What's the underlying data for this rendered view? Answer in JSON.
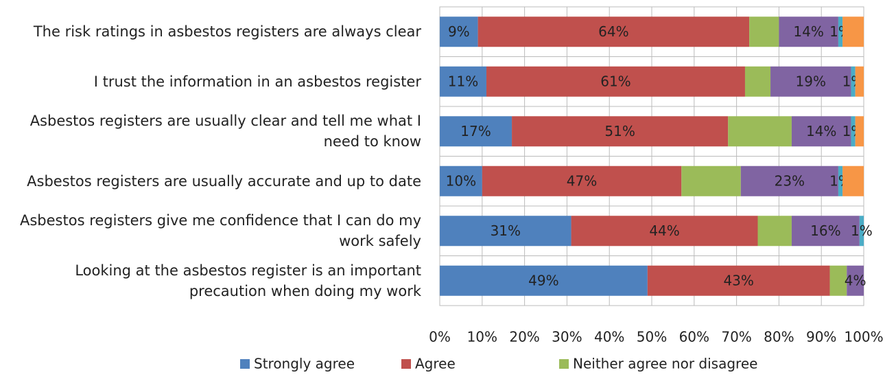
{
  "chart_data": {
    "type": "stacked-bar-horizontal",
    "categories": [
      "The risk ratings in asbestos registers are always clear",
      "I trust the information in an asbestos register",
      "Asbestos registers are usually clear and tell me what I need to know",
      "Asbestos registers are usually accurate and up to date",
      "Asbestos registers give me confidence that I can do my work safely",
      "Looking at the asbestos register is an important precaution when doing my work"
    ],
    "series": [
      {
        "name": "Strongly agree",
        "color": "#4f81bd",
        "values": [
          9,
          11,
          17,
          10,
          31,
          49
        ],
        "value_labels": [
          "9%",
          "11%",
          "17%",
          "10%",
          "31%",
          "49%"
        ]
      },
      {
        "name": "Agree",
        "color": "#c0504d",
        "values": [
          64,
          61,
          51,
          47,
          44,
          43
        ],
        "value_labels": [
          "64%",
          "61%",
          "51%",
          "47%",
          "44%",
          "43%"
        ]
      },
      {
        "name": "Neither agree nor disagree",
        "color": "#9bbb59",
        "values": [
          7,
          6,
          15,
          14,
          8,
          4
        ]
      },
      {
        "color": "#8064a2",
        "values": [
          14,
          19,
          14,
          23,
          16,
          4
        ],
        "value_labels": [
          "14%",
          "19%",
          "14%",
          "23%",
          "16%",
          "4%"
        ]
      },
      {
        "color": "#4bacc6",
        "values": [
          1,
          1,
          1,
          1,
          1,
          0
        ],
        "value_labels": [
          "1%",
          "1%",
          "1%",
          "1%",
          "1%",
          null
        ]
      },
      {
        "color": "#f79646",
        "values": [
          5,
          2,
          2,
          5,
          0,
          0
        ]
      }
    ],
    "xlim": [
      0,
      100
    ],
    "xticks": [
      {
        "value": 0,
        "label": "0%"
      },
      {
        "value": 10,
        "label": "10%"
      },
      {
        "value": 20,
        "label": "20%"
      },
      {
        "value": 30,
        "label": "30%"
      },
      {
        "value": 40,
        "label": "40%"
      },
      {
        "value": 50,
        "label": "50%"
      },
      {
        "value": 60,
        "label": "60%"
      },
      {
        "value": 70,
        "label": "70%"
      },
      {
        "value": 80,
        "label": "80%"
      },
      {
        "value": 90,
        "label": "90%"
      },
      {
        "value": 100,
        "label": "100%"
      }
    ],
    "grid": true
  }
}
